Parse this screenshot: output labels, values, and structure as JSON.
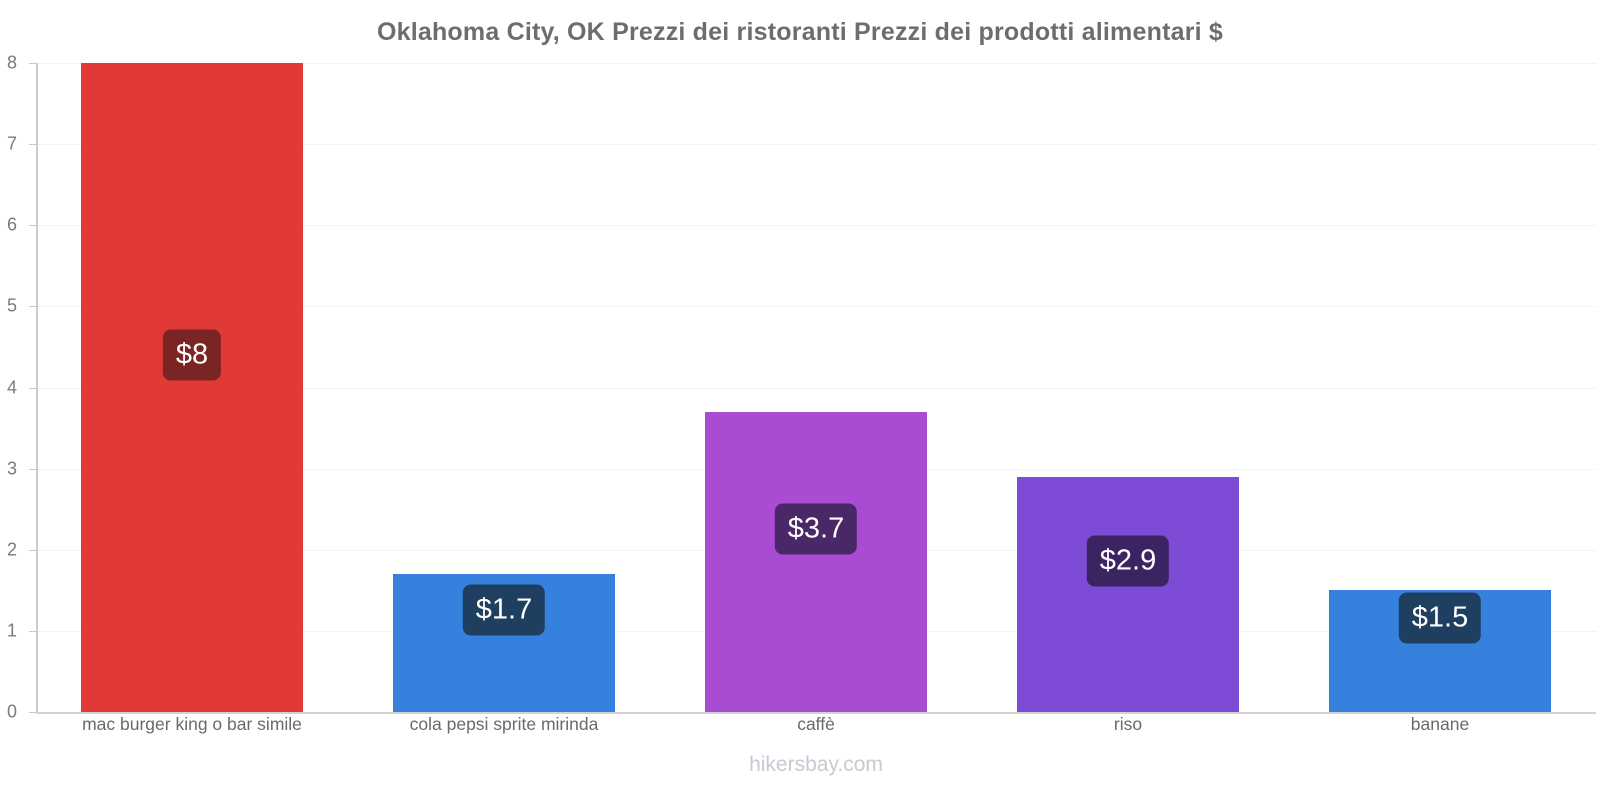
{
  "title": "Oklahoma City, OK Prezzi dei ristoranti Prezzi dei prodotti alimentari $",
  "footer": "hikersbay.com",
  "colors": {
    "background": "#ffffff",
    "title_text": "#6d6d6d",
    "tick_text": "#7b7b7b",
    "category_text": "#6a6a6a",
    "footer_text": "#c6cad3",
    "y_axis_line": "#cbcbcb",
    "x_axis_line": "#d2d2d2",
    "gridline": "#f3f3f3",
    "badge_text": "#ffffff"
  },
  "chart_data": {
    "type": "bar",
    "title": "Oklahoma City, OK Prezzi dei ristoranti Prezzi dei prodotti alimentari $",
    "currency": "$",
    "categories": [
      "mac burger king o bar simile",
      "cola pepsi sprite mirinda",
      "caffè",
      "riso",
      "banane"
    ],
    "values": [
      8,
      1.7,
      3.7,
      2.9,
      1.5
    ],
    "labels": [
      "$8",
      "$1.7",
      "$3.7",
      "$2.9",
      "$1.5"
    ],
    "bar_colors": [
      "#e03936",
      "#3581dd",
      "#a94bd3",
      "#7d4bd5",
      "#3581dd"
    ],
    "badge_colors": [
      "#7a2423",
      "#1e3f60",
      "#4a2767",
      "#3c2362",
      "#1e3f60"
    ],
    "xlabel": "",
    "ylabel": "",
    "ylim": [
      0,
      8
    ],
    "yticks": [
      0,
      1,
      2,
      3,
      4,
      5,
      6,
      7,
      8
    ],
    "grid": true,
    "legend": false,
    "watermark": "hikersbay.com"
  }
}
